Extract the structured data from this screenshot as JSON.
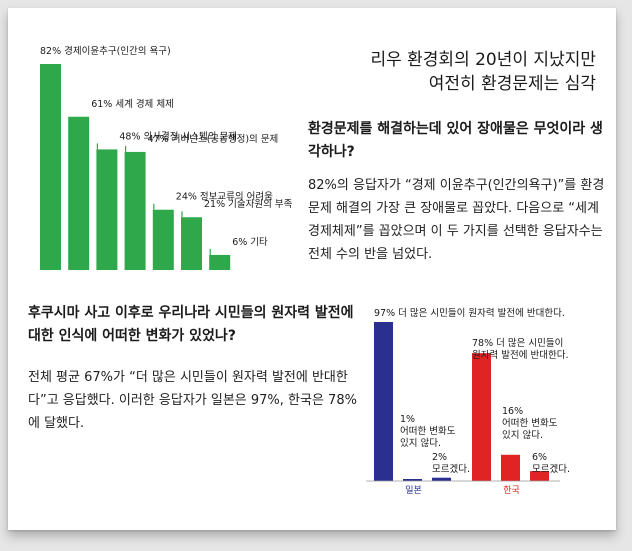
{
  "title_lines": [
    "리우 환경회의 20년이 지났지만",
    "여전히 환경문제는 심각"
  ],
  "question1": "환경문제를 해결하는데 있어 장애물은 무엇이라 생각하나?",
  "answer1": "82%의 응답자가 “경제 이윤추구(인간의욕구)”를 환경문제 해결의 가장 큰 장애물로 꼽았다. 다음으로 “세계 경제체제”를 꼽았으며 이 두 가지를 선택한 응답자수는 전체 수의 반을 넘었다.",
  "question2": "후쿠시마 사고 이후로 우리나라 시민들의 원자력 발전에 대한 인식에 어떠한 변화가 있었나?",
  "answer2": "전체 평균 67%가 “더 많은 시민들이 원자력 발전에 반대한다”고 응답했다. 이러한 응답자가 일본은 97%, 한국은 78%에 달했다.",
  "colors": {
    "green": "#2ea84a",
    "blue": "#2b2f8e",
    "red": "#e02424",
    "text": "#1a1a1a"
  },
  "chart_data": [
    {
      "type": "bar",
      "categories": [
        "경제이윤추구(인간의 욕구)",
        "세계 경제 체제",
        "의사결정 시스템의 문제",
        "거버넌스(공공행정)의 문제",
        "정보교류의 어려움",
        "기술자원의 부족",
        "기타"
      ],
      "values": [
        82,
        61,
        48,
        47,
        24,
        21,
        6
      ],
      "labels": [
        "82% 경제이윤추구(인간의 욕구)",
        "61% 세계 경제 체제",
        "48% 의사결정 시스템의 문제",
        "47% 거버넌스(공공행정)의 문제",
        "24% 정보교류의 어려움",
        "21% 기술자원의 부족",
        "6% 기타"
      ],
      "ylim": [
        0,
        100
      ]
    },
    {
      "type": "bar",
      "categories": [
        "일본",
        "한국"
      ],
      "series": [
        {
          "values": [
            97,
            78
          ],
          "labels": [
            "97% 더 많은 시민들이 원자력 발전에 반대한다.",
            "78% 더 많은 시민들이 원자력 발전에 반대한다."
          ]
        },
        {
          "values": [
            1,
            16
          ],
          "labels": [
            "1% 어떠한 변화도 있지 않다.",
            "16% 어떠한 변화도 있지 않다."
          ]
        },
        {
          "values": [
            2,
            6
          ],
          "labels": [
            "2% 모르겠다.",
            "6% 모르겠다."
          ]
        }
      ],
      "ylim": [
        0,
        100
      ]
    }
  ]
}
